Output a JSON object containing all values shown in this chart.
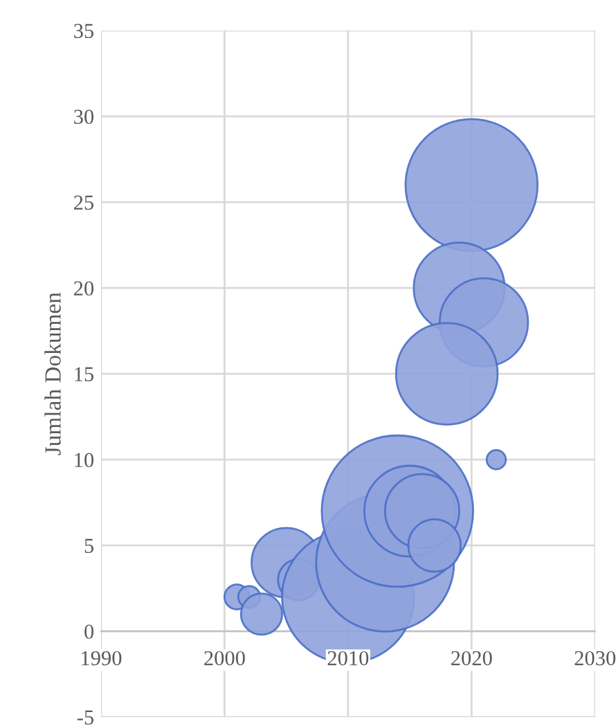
{
  "chart_data": {
    "type": "bubble",
    "ylabel": "Jumlah Dokumen",
    "x": [
      2001,
      2002,
      2003,
      2005,
      2006,
      2010,
      2013,
      2014,
      2015,
      2016,
      2017,
      2022,
      2020,
      2019,
      2021,
      2018
    ],
    "values": [
      2,
      2,
      1,
      4,
      3,
      2,
      4,
      7,
      7,
      7,
      5,
      10,
      26,
      20,
      18,
      15
    ],
    "sizes": [
      0.027,
      0.021,
      0.074,
      0.21,
      0.074,
      0.76,
      0.83,
      1,
      0.36,
      0.24,
      0.12,
      0.016,
      0.76,
      0.36,
      0.34,
      0.45
    ],
    "color": "#8fa2dc",
    "xlim": [
      1990,
      2030
    ],
    "xticks": [
      1990,
      2000,
      2010,
      2020,
      2030
    ],
    "ylim": [
      -5,
      35
    ],
    "yticks": [
      -5,
      0,
      5,
      10,
      15,
      20,
      25,
      30,
      35
    ],
    "grid": true
  }
}
